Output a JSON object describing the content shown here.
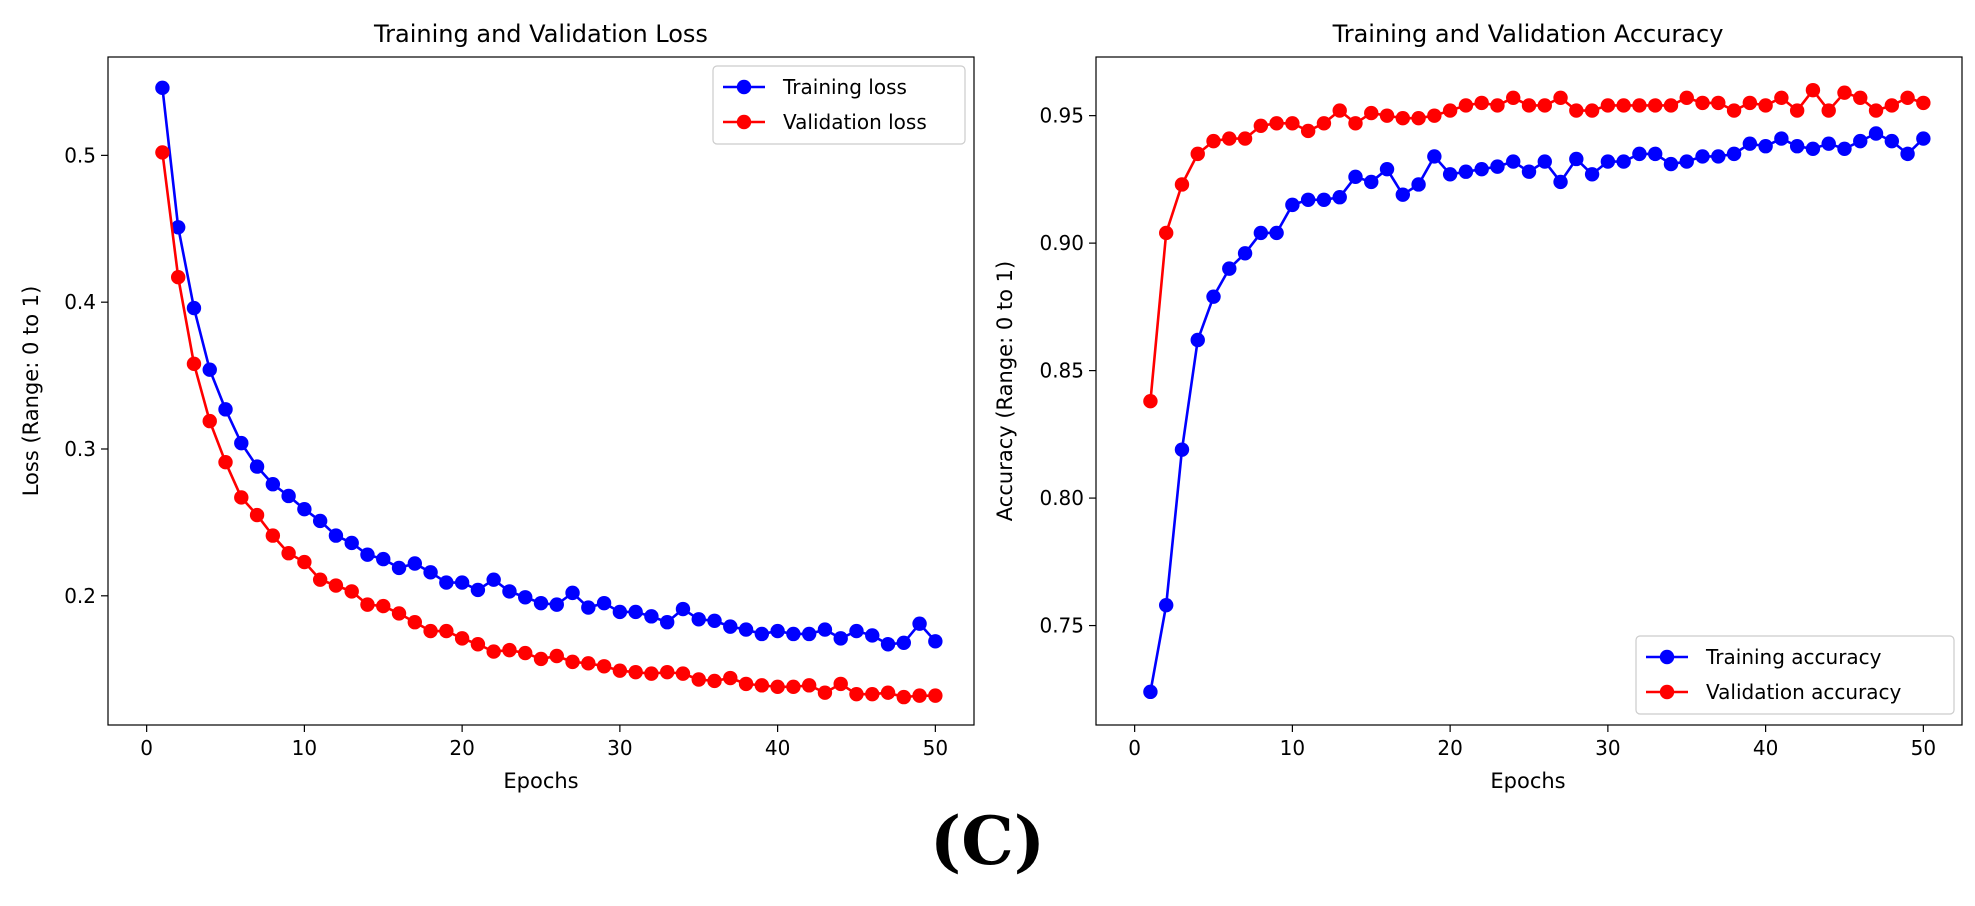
{
  "caption": "(C)",
  "colors": {
    "training": "#0000ff",
    "validation": "#ff0000"
  },
  "chart_data": [
    {
      "type": "line",
      "title": "Training and Validation Loss",
      "xlabel": "Epochs",
      "ylabel": "Loss (Range: 0 to 1)",
      "xlim": [
        -2.45,
        52.45
      ],
      "ylim": [
        0.112,
        0.567
      ],
      "xticks": [
        0,
        10,
        20,
        30,
        40,
        50
      ],
      "xtick_labels": [
        "0",
        "10",
        "20",
        "30",
        "40",
        "50"
      ],
      "yticks": [
        0.2,
        0.3,
        0.4,
        0.5
      ],
      "ytick_labels": [
        "0.2",
        "0.3",
        "0.4",
        "0.5"
      ],
      "legend_position": "top-right",
      "x": [
        1,
        2,
        3,
        4,
        5,
        6,
        7,
        8,
        9,
        10,
        11,
        12,
        13,
        14,
        15,
        16,
        17,
        18,
        19,
        20,
        21,
        22,
        23,
        24,
        25,
        26,
        27,
        28,
        29,
        30,
        31,
        32,
        33,
        34,
        35,
        36,
        37,
        38,
        39,
        40,
        41,
        42,
        43,
        44,
        45,
        46,
        47,
        48,
        49,
        50
      ],
      "series": [
        {
          "name": "Training loss",
          "color": "#0000ff",
          "values": [
            0.546,
            0.451,
            0.396,
            0.354,
            0.327,
            0.304,
            0.288,
            0.276,
            0.268,
            0.259,
            0.251,
            0.241,
            0.236,
            0.228,
            0.225,
            0.219,
            0.222,
            0.216,
            0.209,
            0.209,
            0.204,
            0.211,
            0.203,
            0.199,
            0.195,
            0.194,
            0.202,
            0.192,
            0.195,
            0.189,
            0.189,
            0.186,
            0.182,
            0.191,
            0.184,
            0.183,
            0.179,
            0.177,
            0.174,
            0.176,
            0.174,
            0.174,
            0.177,
            0.171,
            0.176,
            0.173,
            0.167,
            0.168,
            0.181,
            0.169
          ]
        },
        {
          "name": "Validation loss",
          "color": "#ff0000",
          "values": [
            0.502,
            0.417,
            0.358,
            0.319,
            0.291,
            0.267,
            0.255,
            0.241,
            0.229,
            0.223,
            0.211,
            0.207,
            0.203,
            0.194,
            0.193,
            0.188,
            0.182,
            0.176,
            0.176,
            0.171,
            0.167,
            0.162,
            0.163,
            0.161,
            0.157,
            0.159,
            0.155,
            0.154,
            0.152,
            0.149,
            0.148,
            0.147,
            0.148,
            0.147,
            0.143,
            0.142,
            0.144,
            0.14,
            0.139,
            0.138,
            0.138,
            0.139,
            0.134,
            0.14,
            0.133,
            0.133,
            0.134,
            0.131,
            0.132,
            0.132
          ]
        }
      ]
    },
    {
      "type": "line",
      "title": "Training and Validation Accuracy",
      "xlabel": "Epochs",
      "ylabel": "Accuracy (Range: 0 to 1)",
      "xlim": [
        -2.45,
        52.45
      ],
      "ylim": [
        0.711,
        0.973
      ],
      "xticks": [
        0,
        10,
        20,
        30,
        40,
        50
      ],
      "xtick_labels": [
        "0",
        "10",
        "20",
        "30",
        "40",
        "50"
      ],
      "yticks": [
        0.75,
        0.8,
        0.85,
        0.9,
        0.95
      ],
      "ytick_labels": [
        "0.75",
        "0.80",
        "0.85",
        "0.90",
        "0.95"
      ],
      "legend_position": "bottom-right",
      "x": [
        1,
        2,
        3,
        4,
        5,
        6,
        7,
        8,
        9,
        10,
        11,
        12,
        13,
        14,
        15,
        16,
        17,
        18,
        19,
        20,
        21,
        22,
        23,
        24,
        25,
        26,
        27,
        28,
        29,
        30,
        31,
        32,
        33,
        34,
        35,
        36,
        37,
        38,
        39,
        40,
        41,
        42,
        43,
        44,
        45,
        46,
        47,
        48,
        49,
        50
      ],
      "series": [
        {
          "name": "Training accuracy",
          "color": "#0000ff",
          "values": [
            0.724,
            0.758,
            0.819,
            0.862,
            0.879,
            0.89,
            0.896,
            0.904,
            0.904,
            0.915,
            0.917,
            0.917,
            0.918,
            0.926,
            0.924,
            0.929,
            0.919,
            0.923,
            0.934,
            0.927,
            0.928,
            0.929,
            0.93,
            0.932,
            0.928,
            0.932,
            0.924,
            0.933,
            0.927,
            0.932,
            0.932,
            0.935,
            0.935,
            0.931,
            0.932,
            0.934,
            0.934,
            0.935,
            0.939,
            0.938,
            0.941,
            0.938,
            0.937,
            0.939,
            0.937,
            0.94,
            0.943,
            0.94,
            0.935,
            0.941
          ]
        },
        {
          "name": "Validation accuracy",
          "color": "#ff0000",
          "values": [
            0.838,
            0.904,
            0.923,
            0.935,
            0.94,
            0.941,
            0.941,
            0.946,
            0.947,
            0.947,
            0.944,
            0.947,
            0.952,
            0.947,
            0.951,
            0.95,
            0.949,
            0.949,
            0.95,
            0.952,
            0.954,
            0.955,
            0.954,
            0.957,
            0.954,
            0.954,
            0.957,
            0.952,
            0.952,
            0.954,
            0.954,
            0.954,
            0.954,
            0.954,
            0.957,
            0.955,
            0.955,
            0.952,
            0.955,
            0.954,
            0.957,
            0.952,
            0.96,
            0.952,
            0.959,
            0.957,
            0.952,
            0.954,
            0.957,
            0.955
          ]
        }
      ]
    }
  ]
}
